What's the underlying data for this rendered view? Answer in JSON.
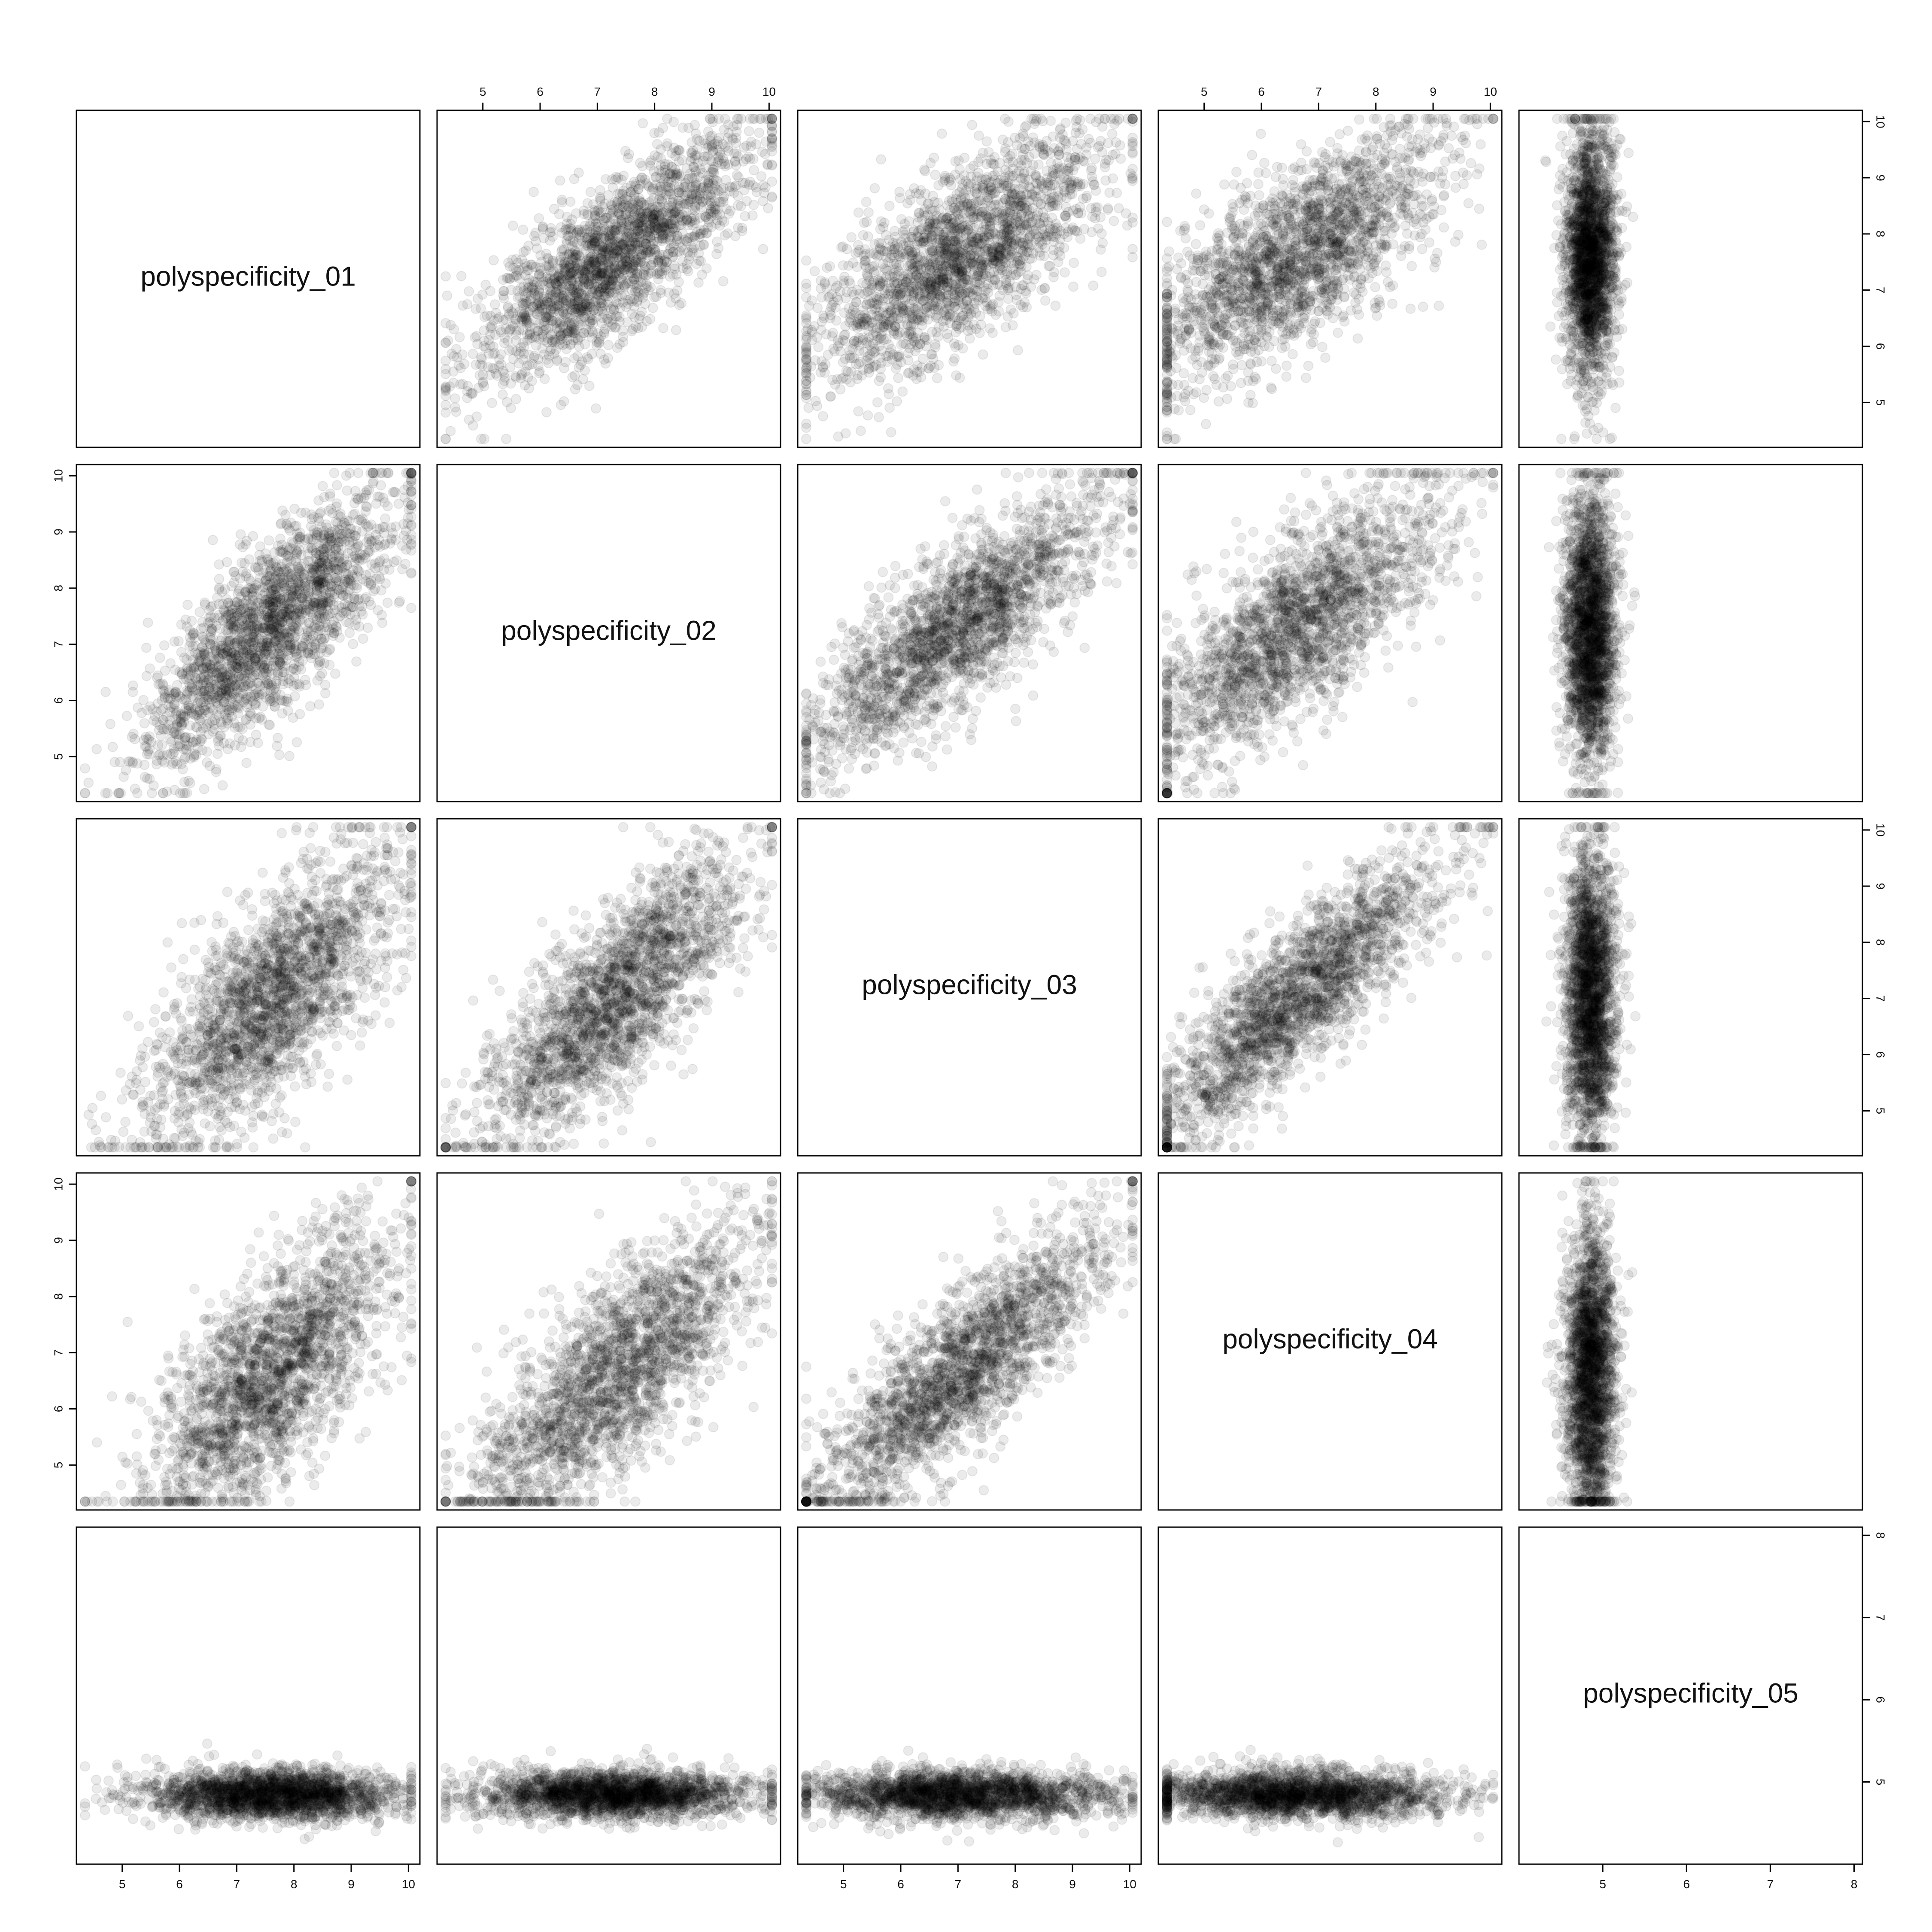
{
  "chart_data": {
    "type": "scatter-matrix",
    "variables": [
      "polyspecificity_01",
      "polyspecificity_02",
      "polyspecificity_03",
      "polyspecificity_04",
      "polyspecificity_05"
    ],
    "variable_ranges": [
      [
        4.2,
        10.2
      ],
      [
        4.2,
        10.2
      ],
      [
        4.2,
        10.2
      ],
      [
        4.2,
        10.2
      ],
      [
        4.0,
        8.1
      ]
    ],
    "ticks": [
      [
        "5",
        "6",
        "7",
        "8",
        "9",
        "10"
      ],
      [
        "5",
        "6",
        "7",
        "8",
        "9",
        "10"
      ],
      [
        "5",
        "6",
        "7",
        "8",
        "9",
        "10"
      ],
      [
        "5",
        "6",
        "7",
        "8",
        "9",
        "10"
      ],
      [
        "5",
        "6",
        "7",
        "8"
      ]
    ],
    "point_color": "#000000",
    "point_alpha": 0.08,
    "grid": false,
    "legend": "none",
    "distributions": {
      "polyspecificity_01": {
        "center": 7.6,
        "spread": 1.1
      },
      "polyspecificity_02": {
        "center": 7.3,
        "spread": 1.2
      },
      "polyspecificity_03": {
        "center": 7.0,
        "spread": 1.3
      },
      "polyspecificity_04": {
        "center": 6.6,
        "spread": 1.3
      },
      "polyspecificity_05": {
        "center": 4.85,
        "spread": 0.15
      }
    },
    "correlations": {
      "01-02": 0.78,
      "01-03": 0.72,
      "01-04": 0.7,
      "02-03": 0.8,
      "02-04": 0.75,
      "03-04": 0.85,
      "01-05": 0.0,
      "02-05": 0.0,
      "03-05": 0.0,
      "04-05": 0.0
    }
  }
}
